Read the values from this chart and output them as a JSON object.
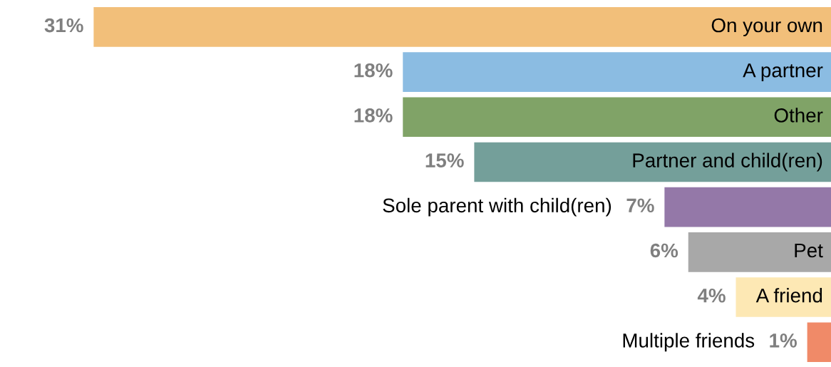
{
  "chart_data": {
    "type": "bar",
    "orientation": "horizontal",
    "categories": [
      "On your own",
      "A partner",
      "Other",
      "Partner and child(ren)",
      "Sole parent with child(ren)",
      "Pet",
      "A friend",
      "Multiple friends"
    ],
    "values": [
      31,
      18,
      18,
      15,
      7,
      6,
      4,
      1
    ],
    "value_labels": [
      "31%",
      "18%",
      "18%",
      "15%",
      "7%",
      "6%",
      "4%",
      "1%"
    ],
    "colors": [
      "#f2bf7a",
      "#8bbce2",
      "#80a367",
      "#749f9a",
      "#9478a8",
      "#a8a8a8",
      "#fde8b4",
      "#f08a68"
    ],
    "legend": false
  }
}
